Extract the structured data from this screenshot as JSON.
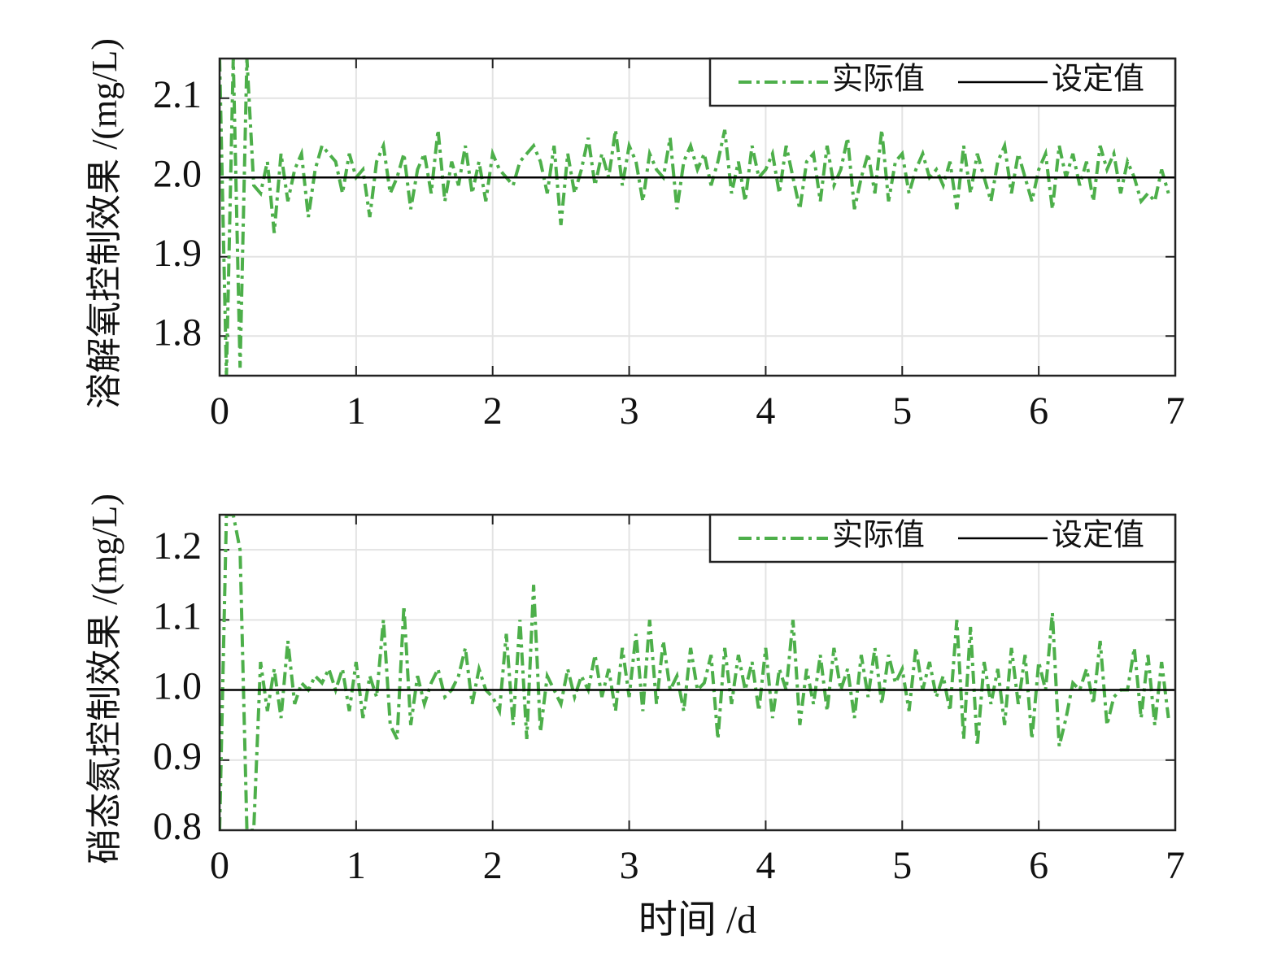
{
  "chart_data": [
    {
      "type": "line",
      "ylabel": "溶解氧控制效果 /(mg/L)",
      "xlim": [
        0,
        7
      ],
      "xticks": [
        0,
        1,
        2,
        3,
        4,
        5,
        6,
        7
      ],
      "ylim": [
        1.75,
        2.15
      ],
      "yticks": [
        1.8,
        1.9,
        {
          "value": 2,
          "label": "2.0"
        },
        2.1
      ],
      "grid": true,
      "legend": "upper right",
      "series": [
        {
          "name": "实际值",
          "color": "#4daf4a",
          "style": "dashdot",
          "x": [
            0,
            0.05,
            0.1,
            0.15,
            0.2,
            0.25,
            0.3,
            0.35,
            0.4,
            0.45,
            0.5,
            0.55,
            0.6,
            0.65,
            0.7,
            0.75,
            0.8,
            0.85,
            0.9,
            0.95,
            1,
            1.05,
            1.1,
            1.15,
            1.2,
            1.25,
            1.3,
            1.35,
            1.4,
            1.45,
            1.5,
            1.55,
            1.6,
            1.65,
            1.7,
            1.75,
            1.8,
            1.85,
            1.9,
            1.95,
            2,
            2.05,
            2.1,
            2.15,
            2.2,
            2.25,
            2.3,
            2.35,
            2.4,
            2.45,
            2.5,
            2.55,
            2.6,
            2.65,
            2.7,
            2.75,
            2.8,
            2.85,
            2.9,
            2.95,
            3,
            3.05,
            3.1,
            3.15,
            3.2,
            3.25,
            3.3,
            3.35,
            3.4,
            3.45,
            3.5,
            3.55,
            3.6,
            3.65,
            3.7,
            3.75,
            3.8,
            3.85,
            3.9,
            3.95,
            4,
            4.05,
            4.1,
            4.15,
            4.2,
            4.25,
            4.3,
            4.35,
            4.4,
            4.45,
            4.5,
            4.55,
            4.6,
            4.65,
            4.7,
            4.75,
            4.8,
            4.85,
            4.9,
            4.95,
            5,
            5.05,
            5.1,
            5.15,
            5.2,
            5.25,
            5.3,
            5.35,
            5.4,
            5.45,
            5.5,
            5.55,
            5.6,
            5.65,
            5.7,
            5.75,
            5.8,
            5.85,
            5.9,
            5.95,
            6,
            6.05,
            6.1,
            6.15,
            6.2,
            6.25,
            6.3,
            6.35,
            6.4,
            6.45,
            6.5,
            6.55,
            6.6,
            6.65,
            6.7,
            6.75,
            6.8,
            6.85,
            6.9,
            6.95
          ],
          "values": [
            2.15,
            1.75,
            2.15,
            1.76,
            2.15,
            1.99,
            1.98,
            2.02,
            1.93,
            2.03,
            1.97,
            2.01,
            2.03,
            1.95,
            2.01,
            2.04,
            2.03,
            2.02,
            1.98,
            2.03,
            2.0,
            2.01,
            1.95,
            2.02,
            2.04,
            1.98,
            2.0,
            2.03,
            1.96,
            2.01,
            2.03,
            1.98,
            2.06,
            1.97,
            2.02,
            1.99,
            2.04,
            1.98,
            2.02,
            1.97,
            2.03,
            2.01,
            2.0,
            1.99,
            2.02,
            2.03,
            2.04,
            2.02,
            1.98,
            2.04,
            1.94,
            2.03,
            1.98,
            2.01,
            2.05,
            1.99,
            2.03,
            2.0,
            2.06,
            1.99,
            2.04,
            2.02,
            1.97,
            2.03,
            2.01,
            2.0,
            2.05,
            1.96,
            2.02,
            2.04,
            2.01,
            2.03,
            1.99,
            2.02,
            2.06,
            1.98,
            2.02,
            1.97,
            2.04,
            2.0,
            2.01,
            2.03,
            1.98,
            2.04,
            2.0,
            1.96,
            2.02,
            2.03,
            1.97,
            2.04,
            1.99,
            2.01,
            2.05,
            1.96,
            2.0,
            2.03,
            1.98,
            2.06,
            1.97,
            2.02,
            2.03,
            1.98,
            2.01,
            2.03,
            2.0,
            2.01,
            1.99,
            2.02,
            1.96,
            2.04,
            1.98,
            2.03,
            2.0,
            1.97,
            2.02,
            2.04,
            1.98,
            2.03,
            2.0,
            1.97,
            2.01,
            2.03,
            1.96,
            2.04,
            2.0,
            2.03,
            1.99,
            2.02,
            1.97,
            2.04,
            2.01,
            2.03,
            1.98,
            2.02,
            2.0,
            1.97,
            1.98,
            1.97,
            2.01,
            1.98
          ]
        },
        {
          "name": "设定值",
          "color": "#000000",
          "style": "solid",
          "x": [
            0,
            7
          ],
          "values": [
            2,
            2
          ]
        }
      ]
    },
    {
      "type": "line",
      "ylabel": "硝态氮控制效果 /(mg/L)",
      "xlabel": "时间 /d",
      "xlim": [
        0,
        7
      ],
      "xticks": [
        0,
        1,
        2,
        3,
        4,
        5,
        6,
        7
      ],
      "ylim": [
        0.8,
        1.25
      ],
      "yticks": [
        0.8,
        0.9,
        {
          "value": 1,
          "label": "1.0"
        },
        1.1,
        1.2
      ],
      "grid": true,
      "legend": "upper right",
      "series": [
        {
          "name": "实际值",
          "color": "#4daf4a",
          "style": "dashdot",
          "x": [
            0,
            0.05,
            0.1,
            0.15,
            0.2,
            0.25,
            0.3,
            0.35,
            0.4,
            0.45,
            0.5,
            0.55,
            0.6,
            0.65,
            0.7,
            0.75,
            0.8,
            0.85,
            0.9,
            0.95,
            1,
            1.05,
            1.1,
            1.15,
            1.2,
            1.25,
            1.3,
            1.35,
            1.4,
            1.45,
            1.5,
            1.55,
            1.6,
            1.65,
            1.7,
            1.75,
            1.8,
            1.85,
            1.9,
            1.95,
            2,
            2.05,
            2.1,
            2.15,
            2.2,
            2.25,
            2.3,
            2.35,
            2.4,
            2.45,
            2.5,
            2.55,
            2.6,
            2.65,
            2.7,
            2.75,
            2.8,
            2.85,
            2.9,
            2.95,
            3,
            3.05,
            3.1,
            3.15,
            3.2,
            3.25,
            3.3,
            3.35,
            3.4,
            3.45,
            3.5,
            3.55,
            3.6,
            3.65,
            3.7,
            3.75,
            3.8,
            3.85,
            3.9,
            3.95,
            4,
            4.05,
            4.1,
            4.15,
            4.2,
            4.25,
            4.3,
            4.35,
            4.4,
            4.45,
            4.5,
            4.55,
            4.6,
            4.65,
            4.7,
            4.75,
            4.8,
            4.85,
            4.9,
            4.95,
            5,
            5.05,
            5.1,
            5.15,
            5.2,
            5.25,
            5.3,
            5.35,
            5.4,
            5.45,
            5.5,
            5.55,
            5.6,
            5.65,
            5.7,
            5.75,
            5.8,
            5.85,
            5.9,
            5.95,
            6,
            6.05,
            6.1,
            6.15,
            6.2,
            6.25,
            6.3,
            6.35,
            6.4,
            6.45,
            6.5,
            6.55,
            6.6,
            6.65,
            6.7,
            6.75,
            6.8,
            6.85,
            6.9,
            6.95
          ],
          "values": [
            0.8,
            1.25,
            1.25,
            1.2,
            0.8,
            0.8,
            1.04,
            0.97,
            1.03,
            0.96,
            1.07,
            0.98,
            1.01,
            1.0,
            1.02,
            1.01,
            1.03,
            1.0,
            1.03,
            0.97,
            1.04,
            0.96,
            1.02,
            0.99,
            1.1,
            0.95,
            0.93,
            1.12,
            0.95,
            1.02,
            0.98,
            1.01,
            1.03,
            0.99,
            1.0,
            1.02,
            1.06,
            0.98,
            1.03,
            1.0,
            0.99,
            0.97,
            1.08,
            0.95,
            1.1,
            0.93,
            1.15,
            0.94,
            1.02,
            1.0,
            0.98,
            1.03,
            0.99,
            1.02,
            1.0,
            1.05,
            0.99,
            1.03,
            0.97,
            1.06,
            0.99,
            1.08,
            0.97,
            1.1,
            0.98,
            1.07,
            1.0,
            1.02,
            0.97,
            1.06,
            1.0,
            1.01,
            1.05,
            0.93,
            1.06,
            0.98,
            1.05,
            1.0,
            1.04,
            0.97,
            1.06,
            0.96,
            1.03,
            1.0,
            1.1,
            0.95,
            1.03,
            0.98,
            1.05,
            0.97,
            1.06,
            1.0,
            1.03,
            0.96,
            1.05,
            0.99,
            1.06,
            0.98,
            1.05,
            1.01,
            1.03,
            0.97,
            1.06,
            1.0,
            1.04,
            0.99,
            1.02,
            0.97,
            1.1,
            0.93,
            1.09,
            0.92,
            1.04,
            0.98,
            1.03,
            0.95,
            1.06,
            0.98,
            1.05,
            0.93,
            1.04,
            1.0,
            1.11,
            0.92,
            0.96,
            1.01,
            1.0,
            1.03,
            0.98,
            1.07,
            0.95,
            0.99,
            1.0,
            1.0,
            1.06,
            0.96,
            1.05,
            0.95,
            1.04,
            0.96
          ]
        },
        {
          "name": "设定值",
          "color": "#000000",
          "style": "solid",
          "x": [
            0,
            7
          ],
          "values": [
            1,
            1
          ]
        }
      ]
    }
  ]
}
